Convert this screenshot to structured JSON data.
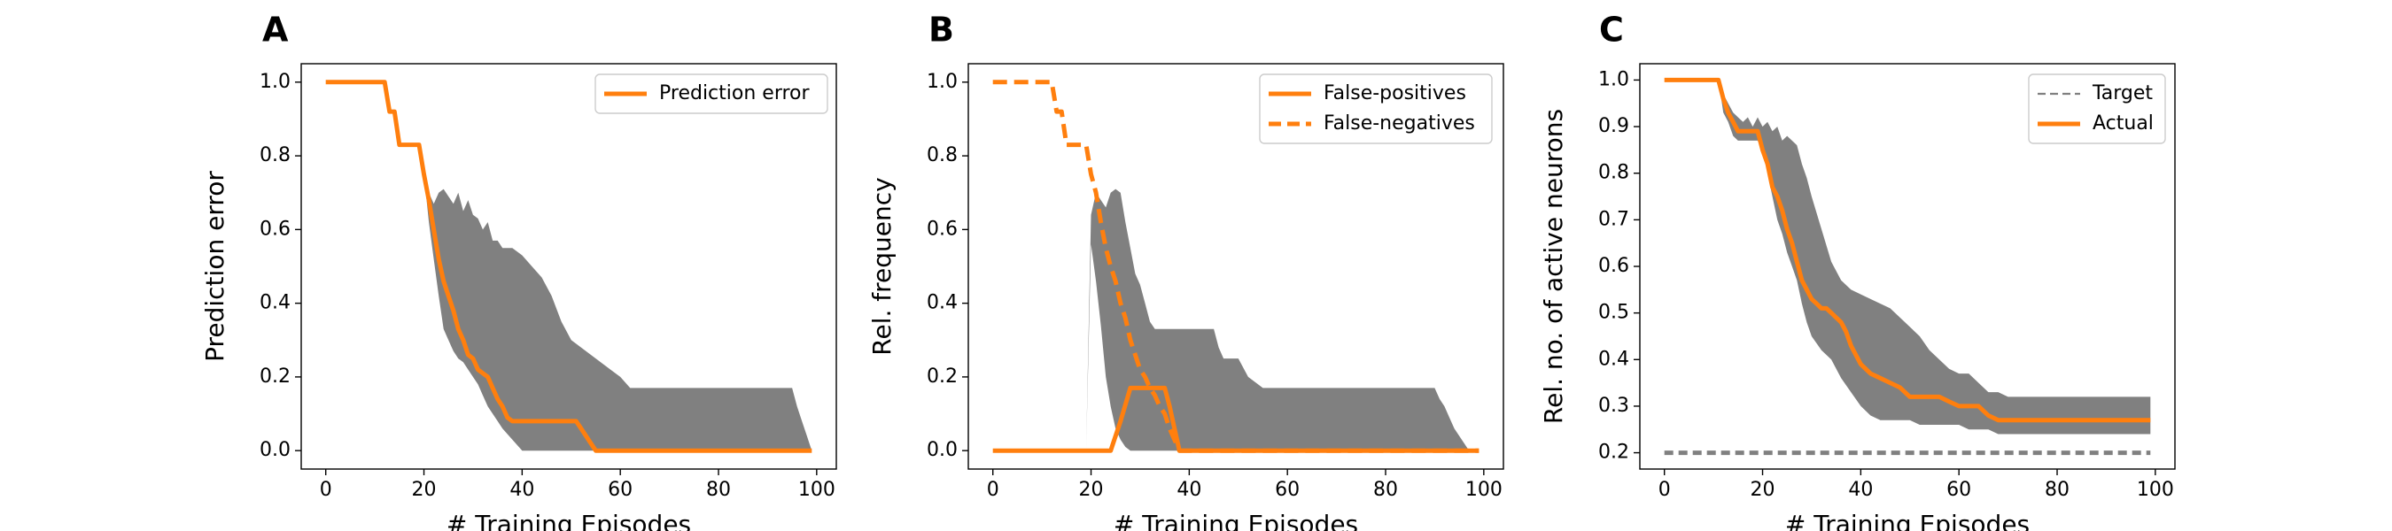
{
  "colors": {
    "orange": "#ff7f0e",
    "band": "#808080",
    "target": "#808080"
  },
  "chart_data": [
    {
      "panel": "A",
      "type": "line",
      "xlabel": "# Training Episodes",
      "ylabel": "Prediction error",
      "xlim": [
        -5,
        104
      ],
      "ylim": [
        -0.05,
        1.05
      ],
      "xticks": [
        "0",
        "20",
        "40",
        "60",
        "80",
        "100"
      ],
      "yticks": [
        "0.0",
        "0.2",
        "0.4",
        "0.6",
        "0.8",
        "1.0"
      ],
      "legend_position": "upper right",
      "band": {
        "x": [
          0,
          12,
          13,
          14,
          15,
          16,
          17,
          18,
          19,
          20,
          21,
          22,
          23,
          24,
          25,
          26,
          27,
          28,
          29,
          30,
          31,
          32,
          33,
          34,
          35,
          36,
          38,
          40,
          42,
          44,
          46,
          48,
          50,
          52,
          55,
          58,
          60,
          62,
          65,
          68,
          70,
          75,
          80,
          85,
          90,
          95,
          96,
          97,
          98,
          99
        ],
        "upper": [
          1.0,
          1.0,
          0.92,
          0.92,
          0.83,
          0.83,
          0.83,
          0.83,
          0.83,
          0.75,
          0.7,
          0.67,
          0.7,
          0.71,
          0.69,
          0.67,
          0.7,
          0.65,
          0.68,
          0.64,
          0.63,
          0.6,
          0.62,
          0.57,
          0.57,
          0.55,
          0.55,
          0.53,
          0.5,
          0.47,
          0.42,
          0.35,
          0.3,
          0.28,
          0.25,
          0.22,
          0.2,
          0.17,
          0.17,
          0.17,
          0.17,
          0.17,
          0.17,
          0.17,
          0.17,
          0.17,
          0.12,
          0.08,
          0.04,
          0.0
        ],
        "lower": [
          1.0,
          1.0,
          0.92,
          0.92,
          0.83,
          0.83,
          0.83,
          0.83,
          0.83,
          0.75,
          0.62,
          0.52,
          0.42,
          0.33,
          0.3,
          0.27,
          0.25,
          0.24,
          0.22,
          0.2,
          0.18,
          0.15,
          0.12,
          0.1,
          0.08,
          0.06,
          0.03,
          0.0,
          0.0,
          0.0,
          0.0,
          0.0,
          0.0,
          0.0,
          0.0,
          0.0,
          0.0,
          0.0,
          0.0,
          0.0,
          0.0,
          0.0,
          0.0,
          0.0,
          0.0,
          0.0,
          0.0,
          0.0,
          0.0,
          0.0
        ]
      },
      "series": [
        {
          "name": "Prediction error",
          "style": "solid",
          "x": [
            0,
            12,
            13,
            14,
            15,
            16,
            19,
            20,
            21,
            22,
            23,
            24,
            25,
            26,
            27,
            28,
            29,
            30,
            31,
            32,
            33,
            34,
            35,
            36,
            37,
            38,
            39,
            40,
            51,
            52,
            53,
            54,
            55,
            99
          ],
          "y": [
            1.0,
            1.0,
            0.92,
            0.92,
            0.83,
            0.83,
            0.83,
            0.75,
            0.68,
            0.6,
            0.52,
            0.46,
            0.42,
            0.38,
            0.33,
            0.3,
            0.26,
            0.25,
            0.22,
            0.21,
            0.2,
            0.17,
            0.14,
            0.12,
            0.09,
            0.08,
            0.08,
            0.08,
            0.08,
            0.06,
            0.04,
            0.02,
            0.0,
            0.0
          ]
        }
      ]
    },
    {
      "panel": "B",
      "type": "line",
      "xlabel": "# Training Episodes",
      "ylabel": "Rel. frequency",
      "xlim": [
        -5,
        104
      ],
      "ylim": [
        -0.05,
        1.05
      ],
      "xticks": [
        "0",
        "20",
        "40",
        "60",
        "80",
        "100"
      ],
      "yticks": [
        "0.0",
        "0.2",
        "0.4",
        "0.6",
        "0.8",
        "1.0"
      ],
      "legend_position": "upper right",
      "band": {
        "x": [
          0,
          19,
          20,
          21,
          22,
          23,
          24,
          25,
          26,
          27,
          28,
          29,
          30,
          31,
          32,
          33,
          34,
          35,
          36,
          38,
          40,
          42,
          44,
          45,
          46,
          47,
          48,
          50,
          52,
          55,
          60,
          70,
          80,
          90,
          91,
          92,
          93,
          94,
          95,
          96,
          97,
          99
        ],
        "upper": [
          0.0,
          0.0,
          0.64,
          0.7,
          0.68,
          0.66,
          0.7,
          0.71,
          0.7,
          0.62,
          0.55,
          0.48,
          0.45,
          0.4,
          0.35,
          0.33,
          0.33,
          0.33,
          0.33,
          0.33,
          0.33,
          0.33,
          0.33,
          0.33,
          0.28,
          0.25,
          0.25,
          0.25,
          0.2,
          0.17,
          0.17,
          0.17,
          0.17,
          0.17,
          0.14,
          0.12,
          0.09,
          0.06,
          0.04,
          0.02,
          0.0,
          0.0
        ],
        "lower": [
          0.0,
          0.0,
          0.56,
          0.46,
          0.34,
          0.2,
          0.12,
          0.06,
          0.03,
          0.01,
          0.0,
          0.0,
          0.0,
          0.0,
          0.0,
          0.0,
          0.0,
          0.0,
          0.0,
          0.0,
          0.0,
          0.0,
          0.0,
          0.0,
          0.0,
          0.0,
          0.0,
          0.0,
          0.0,
          0.0,
          0.0,
          0.0,
          0.0,
          0.0,
          0.0,
          0.0,
          0.0,
          0.0,
          0.0,
          0.0,
          0.0,
          0.0
        ]
      },
      "series": [
        {
          "name": "False-positives",
          "style": "solid",
          "x": [
            0,
            24,
            26,
            28,
            29,
            34,
            35,
            36,
            37,
            38,
            99
          ],
          "y": [
            0.0,
            0.0,
            0.08,
            0.17,
            0.17,
            0.17,
            0.17,
            0.12,
            0.06,
            0.0,
            0.0
          ]
        },
        {
          "name": "False-negatives",
          "style": "dashed",
          "x": [
            0,
            12,
            13,
            14,
            15,
            16,
            18,
            19,
            20,
            21,
            22,
            23,
            24,
            25,
            26,
            27,
            28,
            29,
            30,
            31,
            32,
            33,
            34,
            35,
            36,
            37,
            38,
            99
          ],
          "y": [
            1.0,
            1.0,
            0.92,
            0.92,
            0.83,
            0.83,
            0.83,
            0.83,
            0.75,
            0.7,
            0.62,
            0.55,
            0.5,
            0.46,
            0.4,
            0.36,
            0.3,
            0.26,
            0.22,
            0.2,
            0.17,
            0.15,
            0.12,
            0.1,
            0.06,
            0.03,
            0.0,
            0.0
          ]
        }
      ]
    },
    {
      "panel": "C",
      "type": "line",
      "xlabel": "# Training Episodes",
      "ylabel": "Rel. no. of active neurons",
      "xlim": [
        -5,
        104
      ],
      "ylim": [
        0.165,
        1.035
      ],
      "xticks": [
        "0",
        "20",
        "40",
        "60",
        "80",
        "100"
      ],
      "yticks": [
        "0.2",
        "0.3",
        "0.4",
        "0.5",
        "0.6",
        "0.7",
        "0.8",
        "0.9",
        "1.0"
      ],
      "legend_position": "upper right",
      "band": {
        "x": [
          0,
          11,
          12,
          13,
          14,
          15,
          16,
          17,
          18,
          19,
          20,
          21,
          22,
          23,
          24,
          25,
          26,
          27,
          28,
          29,
          30,
          32,
          34,
          36,
          38,
          40,
          42,
          44,
          46,
          48,
          50,
          52,
          54,
          56,
          58,
          60,
          62,
          64,
          66,
          68,
          70,
          80,
          90,
          99
        ],
        "upper": [
          1.0,
          1.0,
          0.97,
          0.95,
          0.93,
          0.92,
          0.91,
          0.92,
          0.9,
          0.92,
          0.9,
          0.91,
          0.89,
          0.9,
          0.87,
          0.88,
          0.87,
          0.86,
          0.82,
          0.79,
          0.75,
          0.68,
          0.61,
          0.57,
          0.55,
          0.54,
          0.53,
          0.52,
          0.51,
          0.49,
          0.47,
          0.45,
          0.42,
          0.4,
          0.38,
          0.37,
          0.37,
          0.35,
          0.33,
          0.33,
          0.32,
          0.32,
          0.32,
          0.32
        ],
        "lower": [
          1.0,
          1.0,
          0.93,
          0.91,
          0.88,
          0.87,
          0.87,
          0.87,
          0.87,
          0.87,
          0.85,
          0.8,
          0.75,
          0.7,
          0.67,
          0.63,
          0.6,
          0.57,
          0.52,
          0.48,
          0.45,
          0.42,
          0.4,
          0.36,
          0.33,
          0.3,
          0.28,
          0.27,
          0.27,
          0.27,
          0.27,
          0.26,
          0.26,
          0.26,
          0.26,
          0.26,
          0.25,
          0.25,
          0.25,
          0.24,
          0.24,
          0.24,
          0.24,
          0.24
        ]
      },
      "series": [
        {
          "name": "Target",
          "style": "dashed-thin",
          "x": [
            0,
            99
          ],
          "y": [
            0.2,
            0.2
          ]
        },
        {
          "name": "Actual",
          "style": "solid",
          "x": [
            0,
            11,
            12,
            13,
            14,
            15,
            16,
            17,
            18,
            19,
            20,
            21,
            22,
            23,
            24,
            25,
            26,
            27,
            28,
            29,
            30,
            31,
            32,
            33,
            34,
            35,
            36,
            37,
            38,
            39,
            40,
            42,
            44,
            46,
            48,
            50,
            52,
            54,
            56,
            58,
            60,
            62,
            64,
            66,
            68,
            70,
            99
          ],
          "y": [
            1.0,
            1.0,
            0.96,
            0.93,
            0.91,
            0.89,
            0.89,
            0.89,
            0.89,
            0.89,
            0.85,
            0.82,
            0.77,
            0.75,
            0.72,
            0.68,
            0.65,
            0.61,
            0.57,
            0.55,
            0.53,
            0.52,
            0.51,
            0.51,
            0.5,
            0.49,
            0.48,
            0.46,
            0.43,
            0.41,
            0.39,
            0.37,
            0.36,
            0.35,
            0.34,
            0.32,
            0.32,
            0.32,
            0.32,
            0.31,
            0.3,
            0.3,
            0.3,
            0.28,
            0.27,
            0.27,
            0.27
          ]
        }
      ]
    }
  ]
}
